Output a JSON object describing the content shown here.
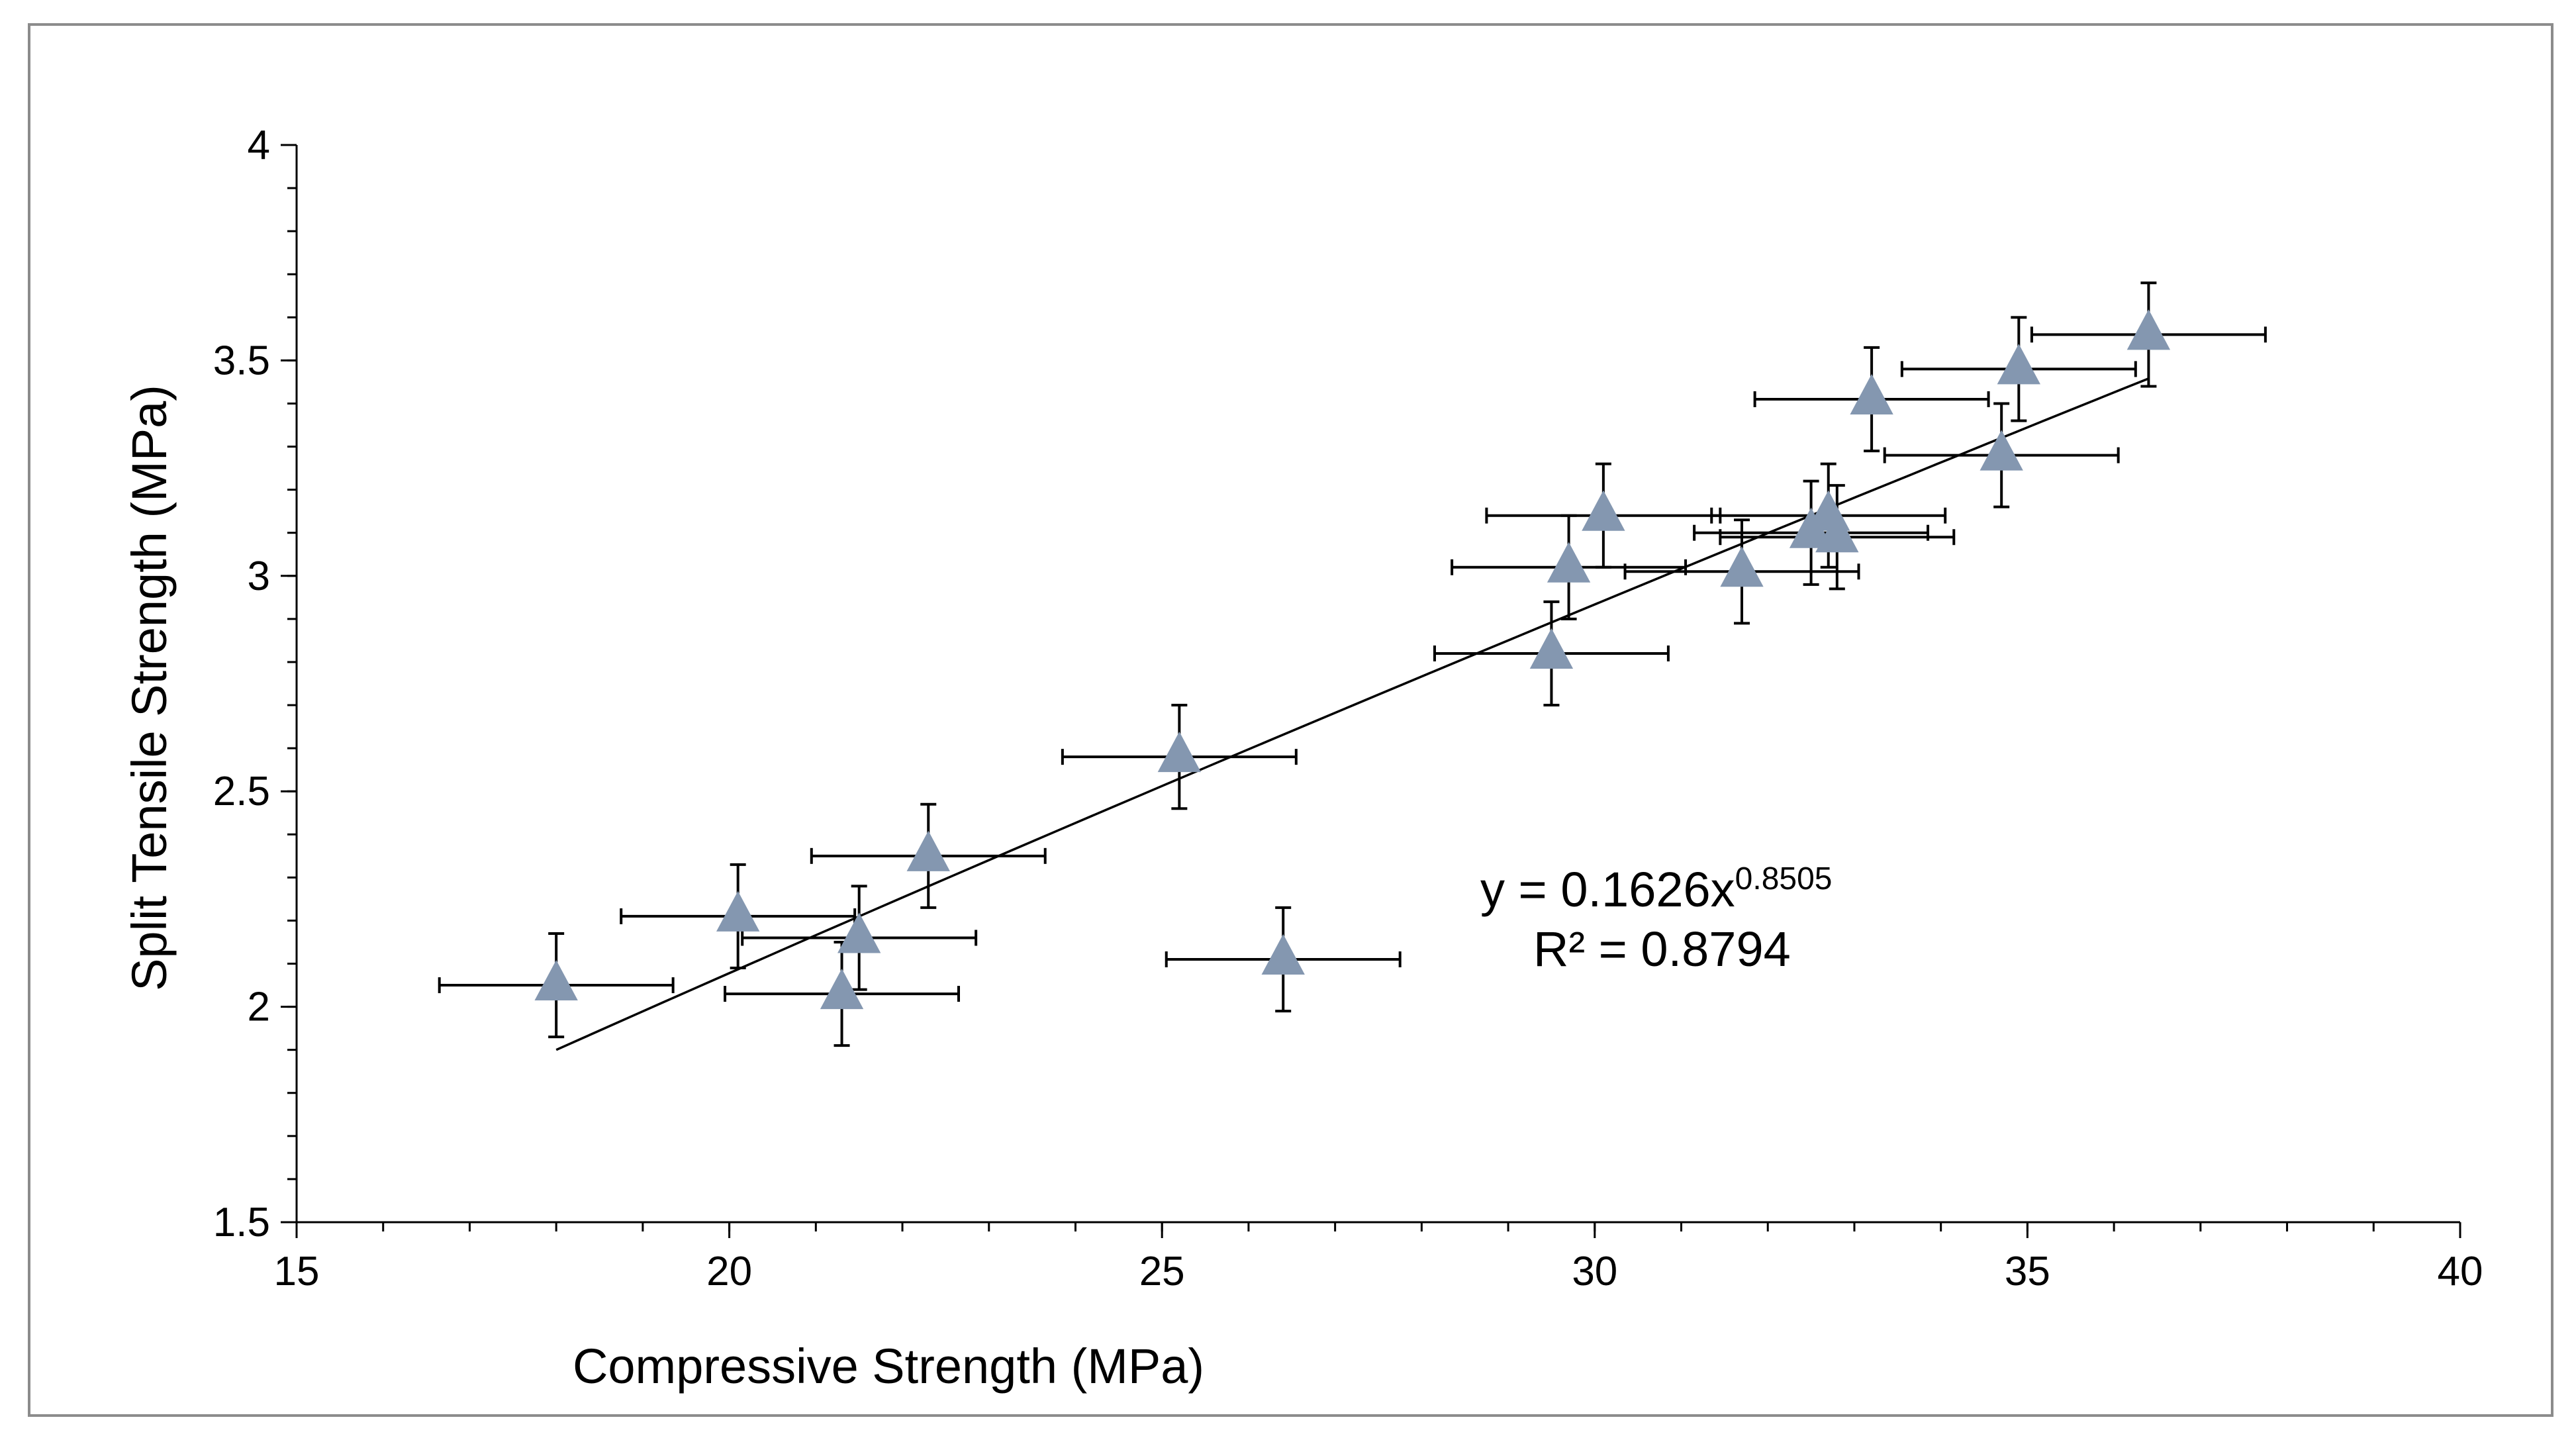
{
  "chart_data": {
    "type": "scatter",
    "title": "",
    "xlabel": "Compressive Strength (MPa)",
    "ylabel": "Split Tensile Strength (MPa)",
    "xlim": [
      15,
      40
    ],
    "ylim": [
      1.5,
      4
    ],
    "x_major_ticks": [
      15,
      20,
      25,
      30,
      35,
      40
    ],
    "x_minor_step": 1,
    "y_major_ticks": [
      1.5,
      2,
      2.5,
      3,
      3.5,
      4
    ],
    "y_tick_labels": [
      "1.5",
      "2",
      "2.5",
      "3",
      "3.5",
      "4"
    ],
    "y_minor_step": 0.1,
    "grid": false,
    "marker": "triangle",
    "marker_color": "#8497b0",
    "points": [
      {
        "x": 18.0,
        "y": 2.05,
        "xerr": 1.35,
        "yerr": 0.12
      },
      {
        "x": 20.1,
        "y": 2.21,
        "xerr": 1.35,
        "yerr": 0.12
      },
      {
        "x": 21.3,
        "y": 2.03,
        "xerr": 1.35,
        "yerr": 0.12
      },
      {
        "x": 21.5,
        "y": 2.16,
        "xerr": 1.35,
        "yerr": 0.12
      },
      {
        "x": 22.3,
        "y": 2.35,
        "xerr": 1.35,
        "yerr": 0.12
      },
      {
        "x": 25.2,
        "y": 2.58,
        "xerr": 1.35,
        "yerr": 0.12
      },
      {
        "x": 26.4,
        "y": 2.11,
        "xerr": 1.35,
        "yerr": 0.12
      },
      {
        "x": 29.5,
        "y": 2.82,
        "xerr": 1.35,
        "yerr": 0.12
      },
      {
        "x": 29.7,
        "y": 3.02,
        "xerr": 1.35,
        "yerr": 0.12
      },
      {
        "x": 30.1,
        "y": 3.14,
        "xerr": 1.35,
        "yerr": 0.12
      },
      {
        "x": 31.7,
        "y": 3.01,
        "xerr": 1.35,
        "yerr": 0.12
      },
      {
        "x": 32.5,
        "y": 3.1,
        "xerr": 1.35,
        "yerr": 0.12
      },
      {
        "x": 32.7,
        "y": 3.14,
        "xerr": 1.35,
        "yerr": 0.12
      },
      {
        "x": 32.8,
        "y": 3.09,
        "xerr": 1.35,
        "yerr": 0.12
      },
      {
        "x": 33.2,
        "y": 3.41,
        "xerr": 1.35,
        "yerr": 0.12
      },
      {
        "x": 34.7,
        "y": 3.28,
        "xerr": 1.35,
        "yerr": 0.12
      },
      {
        "x": 34.9,
        "y": 3.48,
        "xerr": 1.35,
        "yerr": 0.12
      },
      {
        "x": 36.4,
        "y": 3.56,
        "xerr": 1.35,
        "yerr": 0.12
      }
    ],
    "trendline": {
      "type": "power",
      "a": 0.1626,
      "b": 0.8505,
      "x_from": 18.0,
      "x_to": 36.4,
      "equation_text": "y = 0.1626x",
      "equation_exponent": "0.8505",
      "r2_text": "R² = 0.8794"
    }
  }
}
